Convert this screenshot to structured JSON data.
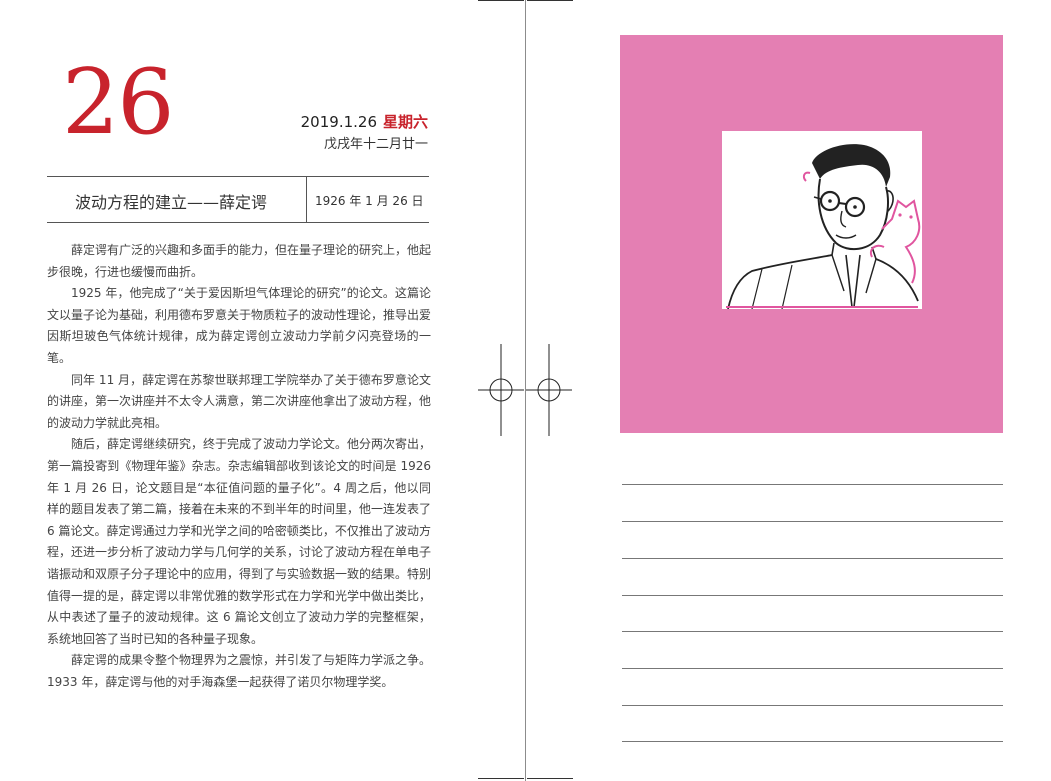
{
  "date_header": {
    "day": "26",
    "gregorian": "2019.1.26",
    "weekday": "星期六",
    "lunar": "戊戌年十二月廿一"
  },
  "article_header": {
    "title": "波动方程的建立——薛定谔",
    "event_date": "1926 年 1 月 26 日"
  },
  "article": {
    "paragraphs": [
      "薛定谔有广泛的兴趣和多面手的能力，但在量子理论的研究上，他起步很晚，行进也缓慢而曲折。",
      "1925 年，他完成了“关于爱因斯坦气体理论的研究”的论文。这篇论文以量子论为基础，利用德布罗意关于物质粒子的波动性理论，推导出爱因斯坦玻色气体统计规律，成为薛定谔创立波动力学前夕闪亮登场的一笔。",
      "同年 11 月，薛定谔在苏黎世联邦理工学院举办了关于德布罗意论文的讲座，第一次讲座并不太令人满意，第二次讲座他拿出了波动方程，他的波动力学就此亮相。",
      "随后，薛定谔继续研究，终于完成了波动力学论文。他分两次寄出，第一篇投寄到《物理年鉴》杂志。杂志编辑部收到该论文的时间是 1926 年 1 月 26 日，论文题目是“本征值问题的量子化”。4 周之后，他以同样的题目发表了第二篇，接着在未来的不到半年的时间里，他一连发表了 6 篇论文。薛定谔通过力学和光学之间的哈密顿类比，不仅推出了波动方程，还进一步分析了波动力学与几何学的关系，讨论了波动方程在单电子谐振动和双原子分子理论中的应用，得到了与实验数据一致的结果。特别值得一提的是，薛定谔以非常优雅的数学形式在力学和光学中做出类比，从中表述了量子的波动规律。这 6 篇论文创立了波动力学的完整框架，系统地回答了当时已知的各种量子现象。",
      "薛定谔的成果令整个物理界为之震惊，并引发了与矩阵力学派之争。1933 年，薛定谔与他的对手海森堡一起获得了诺贝尔物理学奖。"
    ]
  },
  "colors": {
    "accent_red": "#c8232c",
    "panel_pink": "#e47fb3",
    "cat_pink": "#e0559f"
  },
  "icons": {
    "registration_marks": "crosshair-registration-icon",
    "portrait": "schrodinger-portrait-with-cat"
  },
  "notes": {
    "line_count": 8
  }
}
